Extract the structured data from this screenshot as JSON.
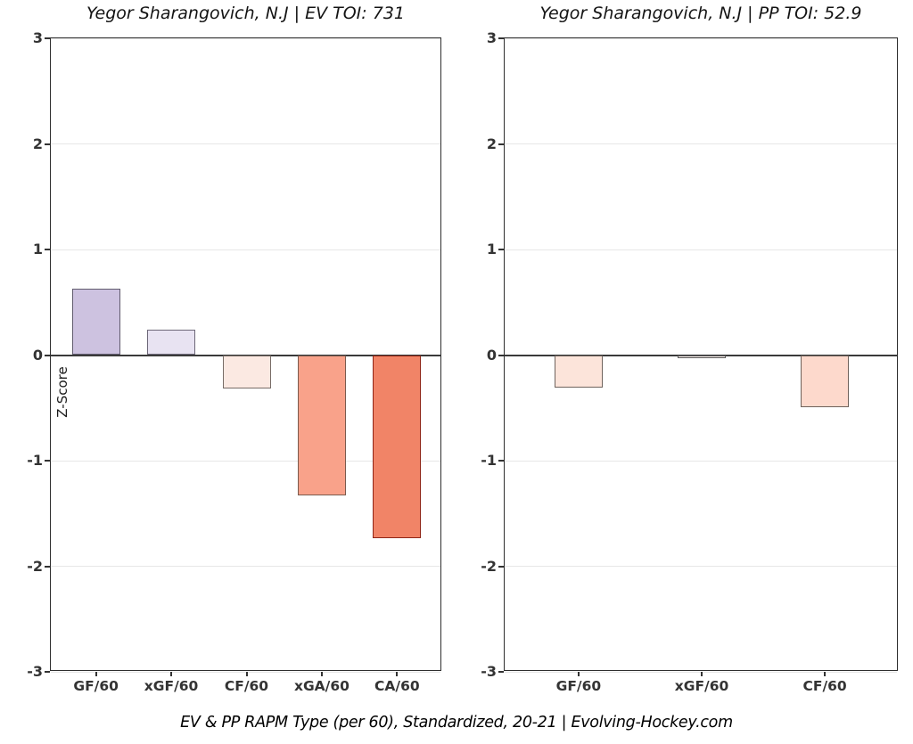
{
  "figure": {
    "background": "#ffffff",
    "caption": "EV & PP RAPM Type (per 60), Standardized, 20-21    |    Evolving-Hockey.com",
    "ylabel": "Z-Score"
  },
  "chart_data": [
    {
      "type": "bar",
      "title": "Yegor Sharangovich, N.J  |  EV TOI: 731",
      "xlabel": "",
      "ylabel": "Z-Score",
      "ylim": [
        -3,
        3
      ],
      "yticks": [
        3,
        2,
        1,
        0,
        -1,
        -2,
        -3
      ],
      "grid": "horizontal-major",
      "legend": "none",
      "categories": [
        "GF/60",
        "xGF/60",
        "CF/60",
        "xGA/60",
        "CA/60"
      ],
      "values": [
        0.63,
        0.24,
        -0.32,
        -1.33,
        -1.73
      ],
      "bar_fills": [
        "#cdc2e0",
        "#e8e3f2",
        "#fbe9e2",
        "#f9a28a",
        "#f18467"
      ],
      "bar_borders": [
        "#615c6e",
        "#6d6878",
        "#776c67",
        "#7a5a4d",
        "#8f2516"
      ]
    },
    {
      "type": "bar",
      "title": "Yegor Sharangovich, N.J  |  PP TOI: 52.9",
      "xlabel": "",
      "ylabel": "",
      "ylim": [
        -3,
        3
      ],
      "yticks": [
        3,
        2,
        1,
        0,
        -1,
        -2,
        -3
      ],
      "grid": "horizontal-major",
      "legend": "none",
      "categories": [
        "GF/60",
        "xGF/60",
        "CF/60"
      ],
      "values": [
        -0.31,
        -0.03,
        -0.49
      ],
      "bar_fills": [
        "#fce4da",
        "#fdf3ef",
        "#fdd9cc"
      ],
      "bar_borders": [
        "#6e635d",
        "#5a5a5a",
        "#6f625b"
      ]
    }
  ]
}
